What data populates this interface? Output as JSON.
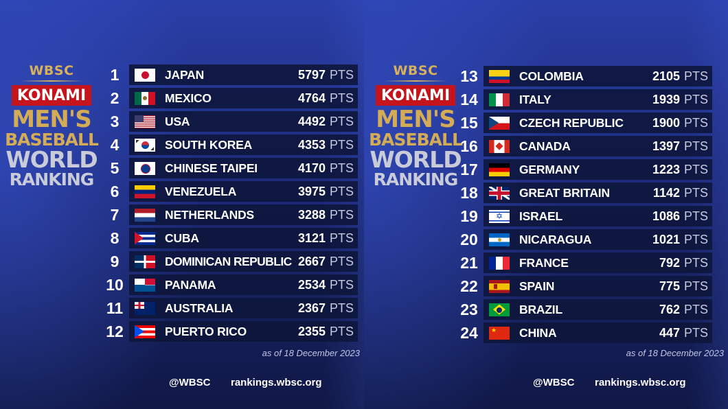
{
  "branding": {
    "wbsc": "WBSC",
    "konami": "KONAMI",
    "title_line1": "MEN'S",
    "title_line2": "BASEBALL",
    "title_line3": "WORLD",
    "title_line4": "RANKING"
  },
  "pts_label": "PTS",
  "as_of": "as of 18 December 2023",
  "footer": {
    "handle": "@WBSC",
    "url": "rankings.wbsc.org"
  },
  "left": [
    {
      "rank": "1",
      "country": "JAPAN",
      "points": "5797",
      "flag": "japan-flag-icon"
    },
    {
      "rank": "2",
      "country": "MEXICO",
      "points": "4764",
      "flag": "mexico-flag-icon"
    },
    {
      "rank": "3",
      "country": "USA",
      "points": "4492",
      "flag": "usa-flag-icon"
    },
    {
      "rank": "4",
      "country": "SOUTH KOREA",
      "points": "4353",
      "flag": "south-korea-flag-icon"
    },
    {
      "rank": "5",
      "country": "CHINESE TAIPEI",
      "points": "4170",
      "flag": "chinese-taipei-flag-icon"
    },
    {
      "rank": "6",
      "country": "VENEZUELA",
      "points": "3975",
      "flag": "venezuela-flag-icon"
    },
    {
      "rank": "7",
      "country": "NETHERLANDS",
      "points": "3288",
      "flag": "netherlands-flag-icon"
    },
    {
      "rank": "8",
      "country": "CUBA",
      "points": "3121",
      "flag": "cuba-flag-icon"
    },
    {
      "rank": "9",
      "country": "DOMINICAN REPUBLIC",
      "points": "2667",
      "flag": "dominican-republic-flag-icon"
    },
    {
      "rank": "10",
      "country": "PANAMA",
      "points": "2534",
      "flag": "panama-flag-icon"
    },
    {
      "rank": "11",
      "country": "AUSTRALIA",
      "points": "2367",
      "flag": "australia-flag-icon"
    },
    {
      "rank": "12",
      "country": "PUERTO RICO",
      "points": "2355",
      "flag": "puerto-rico-flag-icon"
    }
  ],
  "right": [
    {
      "rank": "13",
      "country": "COLOMBIA",
      "points": "2105",
      "flag": "colombia-flag-icon"
    },
    {
      "rank": "14",
      "country": "ITALY",
      "points": "1939",
      "flag": "italy-flag-icon"
    },
    {
      "rank": "15",
      "country": "CZECH REPUBLIC",
      "points": "1900",
      "flag": "czech-republic-flag-icon"
    },
    {
      "rank": "16",
      "country": "CANADA",
      "points": "1397",
      "flag": "canada-flag-icon"
    },
    {
      "rank": "17",
      "country": "GERMANY",
      "points": "1223",
      "flag": "germany-flag-icon"
    },
    {
      "rank": "18",
      "country": "GREAT BRITAIN",
      "points": "1142",
      "flag": "great-britain-flag-icon"
    },
    {
      "rank": "19",
      "country": "ISRAEL",
      "points": "1086",
      "flag": "israel-flag-icon"
    },
    {
      "rank": "20",
      "country": "NICARAGUA",
      "points": "1021",
      "flag": "nicaragua-flag-icon"
    },
    {
      "rank": "21",
      "country": "FRANCE",
      "points": "792",
      "flag": "france-flag-icon"
    },
    {
      "rank": "22",
      "country": "SPAIN",
      "points": "775",
      "flag": "spain-flag-icon"
    },
    {
      "rank": "23",
      "country": "BRAZIL",
      "points": "762",
      "flag": "brazil-flag-icon"
    },
    {
      "rank": "24",
      "country": "CHINA",
      "points": "447",
      "flag": "china-flag-icon"
    }
  ]
}
